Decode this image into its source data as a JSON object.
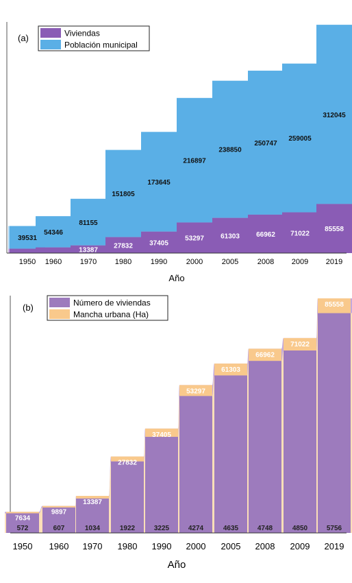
{
  "chart_data": [
    {
      "type": "bar",
      "panel_label": "(a)",
      "stacked": true,
      "categories": [
        "1950",
        "1960",
        "1970",
        "1980",
        "1990",
        "2000",
        "2005",
        "2008",
        "2009",
        "2019"
      ],
      "xlabel": "Año",
      "series": [
        {
          "name": "Viviendas",
          "color": "#8a5cb5",
          "values": [
            7634,
            9897,
            13387,
            27832,
            37405,
            53297,
            61303,
            66962,
            71022,
            85558
          ]
        },
        {
          "name": "Población municipal",
          "color": "#5aafe6",
          "values": [
            39531,
            54346,
            81155,
            151805,
            173645,
            216897,
            238850,
            250747,
            259005,
            312045
          ]
        }
      ],
      "labels_bottom": [
        "",
        "",
        "13387",
        "27832",
        "37405",
        "53297",
        "61303",
        "66962",
        "71022",
        "85558"
      ],
      "labels_top": [
        "39531",
        "54346",
        "81155",
        "151805",
        "173645",
        "216897",
        "238850",
        "250747",
        "259005",
        "312045"
      ],
      "legend": "top-left",
      "grid": false
    },
    {
      "type": "bar",
      "panel_label": "(b)",
      "stacked": true,
      "categories": [
        "1950",
        "1960",
        "1970",
        "1980",
        "1990",
        "2000",
        "2005",
        "2008",
        "2009",
        "2019"
      ],
      "xlabel": "Año",
      "series": [
        {
          "name": "Número de viviendas",
          "color": "#9d7bbd",
          "values": [
            7634,
            9897,
            13387,
            27832,
            37405,
            53297,
            61303,
            66962,
            71022,
            85558
          ]
        },
        {
          "name": "Mancha urbana (Ha)",
          "color": "#f9c98c",
          "values": [
            572,
            607,
            1034,
            1922,
            3225,
            4274,
            4635,
            4748,
            4850,
            5756
          ]
        }
      ],
      "labels_bottom": [
        "572",
        "607",
        "1034",
        "1922",
        "3225",
        "4274",
        "4635",
        "4748",
        "4850",
        "5756"
      ],
      "labels_top": [
        "7634",
        "9897",
        "13387",
        "27832",
        "37405",
        "53297",
        "61303",
        "66962",
        "71022",
        "85558"
      ],
      "legend": "top-left",
      "grid": false
    }
  ]
}
